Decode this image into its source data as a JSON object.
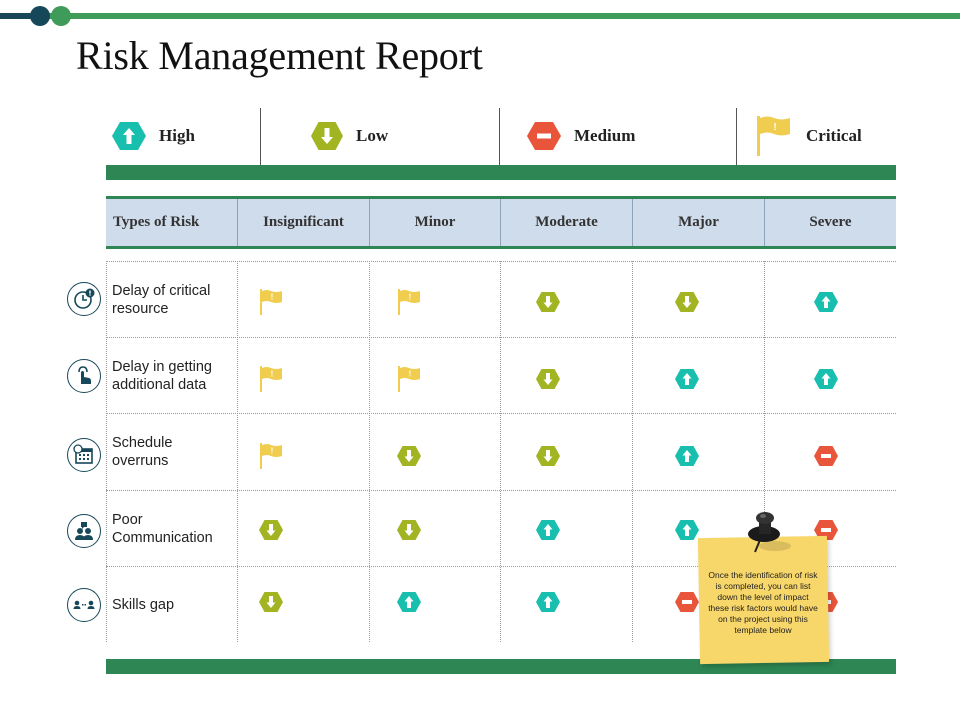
{
  "title": "Risk Management Report",
  "colors": {
    "high": "#19bfae",
    "low": "#a2b422",
    "medium": "#e8553b",
    "critical": "#f0cd4e",
    "band": "#2d8654",
    "navy": "#17485a"
  },
  "legend": [
    {
      "label": "High",
      "icon": "arrow-up-octagon-icon"
    },
    {
      "label": "Low",
      "icon": "arrow-down-octagon-icon"
    },
    {
      "label": "Medium",
      "icon": "minus-octagon-icon"
    },
    {
      "label": "Critical",
      "icon": "flag-icon"
    }
  ],
  "table": {
    "headers": [
      "Types of Risk",
      "Insignificant",
      "Minor",
      "Moderate",
      "Major",
      "Severe"
    ],
    "rows": [
      {
        "label": "Delay of critical resource",
        "icon": "clock-alert-icon",
        "cells": [
          "critical",
          "critical",
          "low",
          "low",
          "high"
        ]
      },
      {
        "label": "Delay in getting additional data",
        "icon": "hand-pointer-icon",
        "cells": [
          "critical",
          "critical",
          "low",
          "high",
          "high"
        ]
      },
      {
        "label": "Schedule overruns",
        "icon": "calendar-clock-icon",
        "cells": [
          "critical",
          "low",
          "low",
          "high",
          "medium"
        ]
      },
      {
        "label": "Poor Communication",
        "icon": "people-chat-icon",
        "cells": [
          "low",
          "low",
          "high",
          "high",
          "medium"
        ]
      },
      {
        "label": "Skills gap",
        "icon": "people-exchange-icon",
        "cells": [
          "low",
          "high",
          "high",
          "medium",
          "medium"
        ]
      }
    ]
  },
  "note": {
    "text": "Once the identification of risk is completed, you can list down the level of impact these risk factors would have on the project using this template below",
    "icon": "pushpin-icon"
  }
}
